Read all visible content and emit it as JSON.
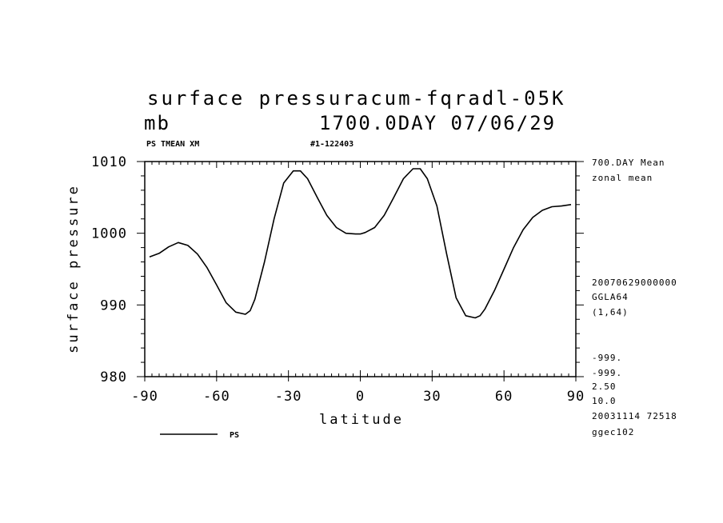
{
  "title": {
    "line1": "surface pressuracum-fqradl-05K",
    "unit": "mb",
    "time": "1700.0DAY 07/06/29"
  },
  "header_left": "PS TMEAN XM",
  "header_mid": "#1-122403",
  "side_info": {
    "mean": "700.DAY Mean",
    "zonal": "zonal mean",
    "date": "20070629000000",
    "model": "GGLA64",
    "grid": "(1,64)",
    "m1": "-999.",
    "m2": "-999.",
    "v1": "2.50",
    "v2": "10.0",
    "run": "20031114  72518",
    "host": "ggec102"
  },
  "chart_data": {
    "type": "line",
    "xlabel": "latitude",
    "ylabel": "surface pressure",
    "xlim": [
      -90,
      90
    ],
    "ylim": [
      980,
      1010
    ],
    "xticks": [
      "-90",
      "-60",
      "-30",
      "0",
      "30",
      "60",
      "90"
    ],
    "yticks": [
      "980",
      "990",
      "1000",
      "1010"
    ],
    "legend": "bottom-left",
    "series": [
      {
        "name": "PS",
        "color": "#000000",
        "x": [
          -88,
          -84,
          -80,
          -76,
          -72,
          -68,
          -64,
          -60,
          -56,
          -52,
          -48,
          -46,
          -44,
          -40,
          -36,
          -32,
          -28,
          -25,
          -22,
          -18,
          -14,
          -10,
          -6,
          -2,
          0,
          2,
          6,
          10,
          14,
          18,
          22,
          25,
          28,
          32,
          36,
          40,
          44,
          48,
          50,
          52,
          56,
          60,
          64,
          68,
          72,
          76,
          80,
          84,
          88
        ],
        "y": [
          996.7,
          997.2,
          998.1,
          998.7,
          998.3,
          997.1,
          995.2,
          992.8,
          990.3,
          989.0,
          988.7,
          989.2,
          990.8,
          996.0,
          1002.0,
          1007.0,
          1008.7,
          1008.7,
          1007.6,
          1005.0,
          1002.5,
          1000.8,
          1000.0,
          999.9,
          999.9,
          1000.1,
          1000.8,
          1002.5,
          1005.0,
          1007.6,
          1009.0,
          1009.0,
          1007.6,
          1003.8,
          997.2,
          991.0,
          988.5,
          988.2,
          988.5,
          989.4,
          992.0,
          995.0,
          998.0,
          1000.5,
          1002.2,
          1003.2,
          1003.7,
          1003.8,
          1004.0
        ]
      }
    ]
  }
}
